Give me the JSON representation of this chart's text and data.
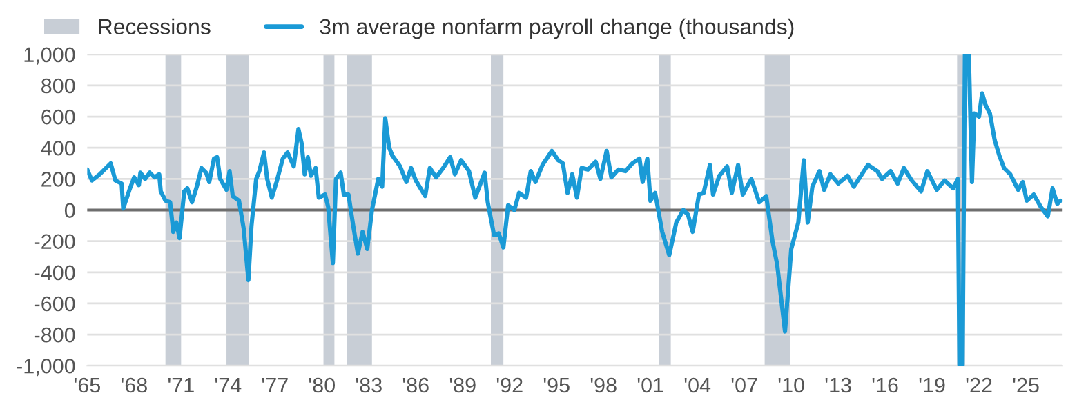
{
  "chart_data": {
    "type": "line",
    "series": [
      {
        "name": "3m average nonfarm payroll change (thousands)",
        "color": "#1a9ad6",
        "x": [
          1965.0,
          1965.3,
          1965.8,
          1966.5,
          1966.8,
          1967.2,
          1967.3,
          1967.7,
          1968.0,
          1968.3,
          1968.4,
          1968.7,
          1969.0,
          1969.3,
          1969.6,
          1969.7,
          1970.0,
          1970.3,
          1970.5,
          1970.7,
          1970.9,
          1971.2,
          1971.4,
          1971.7,
          1972.0,
          1972.3,
          1972.6,
          1972.8,
          1973.1,
          1973.3,
          1973.5,
          1973.9,
          1974.1,
          1974.3,
          1974.7,
          1975.0,
          1975.3,
          1975.5,
          1975.8,
          1976.0,
          1976.3,
          1976.5,
          1976.8,
          1977.1,
          1977.5,
          1977.8,
          1978.2,
          1978.5,
          1978.7,
          1978.9,
          1979.1,
          1979.3,
          1979.6,
          1979.8,
          1980.2,
          1980.4,
          1980.7,
          1980.9,
          1981.2,
          1981.4,
          1981.7,
          1982.0,
          1982.3,
          1982.6,
          1982.9,
          1983.2,
          1983.6,
          1983.85,
          1984.05,
          1984.3,
          1984.5,
          1985.0,
          1985.4,
          1985.7,
          1986.0,
          1986.6,
          1986.9,
          1987.3,
          1987.75,
          1988.2,
          1988.5,
          1988.9,
          1989.4,
          1989.8,
          1990.4,
          1990.6,
          1991.0,
          1991.3,
          1991.6,
          1991.9,
          1992.3,
          1992.6,
          1993.05,
          1993.35,
          1993.65,
          1994.1,
          1994.7,
          1995.1,
          1995.4,
          1995.7,
          1996.0,
          1996.3,
          1996.6,
          1997.0,
          1997.5,
          1997.8,
          1998.2,
          1998.5,
          1998.95,
          1999.4,
          1999.85,
          2000.3,
          2000.5,
          2000.8,
          2001.0,
          2001.3,
          2001.75,
          2002.2,
          2002.65,
          2003.1,
          2003.4,
          2003.7,
          2004.1,
          2004.4,
          2004.8,
          2005.0,
          2005.4,
          2005.9,
          2006.2,
          2006.6,
          2006.9,
          2007.45,
          2007.95,
          2008.4,
          2008.8,
          2009.1,
          2009.6,
          2010.0,
          2010.45,
          2010.8,
          2011.05,
          2011.35,
          2011.8,
          2012.1,
          2012.5,
          2013.0,
          2013.6,
          2014.0,
          2014.9,
          2015.5,
          2015.8,
          2016.35,
          2016.8,
          2017.2,
          2017.7,
          2018.3,
          2018.7,
          2019.3,
          2019.8,
          2020.35,
          2020.65,
          2020.75,
          2020.95,
          2021.1,
          2021.35,
          2021.55,
          2021.7,
          2022.0,
          2022.2,
          2022.4,
          2022.7,
          2023.0,
          2023.3,
          2023.6,
          2024.0,
          2024.5,
          2024.8,
          2025.05,
          2025.5,
          2025.95,
          2026.4,
          2026.7,
          2027.0,
          2027.2
        ],
        "values": [
          260,
          190,
          230,
          300,
          190,
          170,
          10,
          130,
          210,
          160,
          240,
          200,
          240,
          210,
          230,
          120,
          60,
          50,
          -140,
          -80,
          -180,
          120,
          140,
          50,
          150,
          270,
          240,
          180,
          330,
          340,
          200,
          130,
          250,
          90,
          60,
          -120,
          -450,
          -100,
          200,
          250,
          370,
          200,
          80,
          180,
          330,
          370,
          280,
          520,
          430,
          230,
          340,
          220,
          270,
          80,
          100,
          20,
          -340,
          200,
          240,
          100,
          100,
          -100,
          -280,
          -140,
          -250,
          0,
          200,
          150,
          590,
          400,
          350,
          280,
          180,
          270,
          190,
          90,
          270,
          210,
          270,
          340,
          230,
          320,
          250,
          80,
          240,
          50,
          -160,
          -150,
          -240,
          30,
          0,
          110,
          80,
          250,
          180,
          290,
          380,
          320,
          300,
          110,
          230,
          80,
          270,
          260,
          310,
          200,
          380,
          210,
          260,
          250,
          300,
          330,
          180,
          330,
          60,
          110,
          -140,
          -290,
          -80,
          0,
          -30,
          -140,
          100,
          110,
          290,
          100,
          220,
          280,
          110,
          290,
          100,
          200,
          50,
          90,
          -200,
          -350,
          -780,
          -250,
          -80,
          320,
          -80,
          150,
          250,
          130,
          230,
          170,
          220,
          150,
          290,
          250,
          200,
          250,
          170,
          270,
          190,
          120,
          250,
          130,
          190,
          140,
          200,
          -1000,
          -1000,
          1000,
          1000,
          180,
          620,
          600,
          750,
          680,
          620,
          450,
          350,
          270,
          230,
          130,
          180,
          60,
          100,
          20,
          -40,
          140,
          40,
          60
        ]
      }
    ],
    "bands": [
      {
        "axis": "x",
        "from": 1970.0,
        "to": 1971.0,
        "label": "Recessions",
        "color": "#c8ced6"
      },
      {
        "axis": "x",
        "from": 1973.9,
        "to": 1975.35,
        "color": "#c8ced6"
      },
      {
        "axis": "x",
        "from": 1980.1,
        "to": 1980.8,
        "color": "#c8ced6"
      },
      {
        "axis": "x",
        "from": 1981.6,
        "to": 1983.2,
        "color": "#c8ced6"
      },
      {
        "axis": "x",
        "from": 1990.8,
        "to": 1991.6,
        "color": "#c8ced6"
      },
      {
        "axis": "x",
        "from": 2001.55,
        "to": 2002.3,
        "color": "#c8ced6"
      },
      {
        "axis": "x",
        "from": 2008.3,
        "to": 2009.95,
        "color": "#c8ced6"
      },
      {
        "axis": "x",
        "from": 2020.6,
        "to": 2021.1,
        "color": "#c8ced6"
      }
    ],
    "ref_lines": [
      {
        "axis": "y",
        "value": 0,
        "color": "#6e6e6e"
      }
    ],
    "xlim": [
      1965,
      2027.3
    ],
    "xticks": [
      {
        "value": 1965,
        "label": "'65"
      },
      {
        "value": 1968,
        "label": "'68"
      },
      {
        "value": 1971,
        "label": "'71"
      },
      {
        "value": 1974,
        "label": "'74"
      },
      {
        "value": 1977,
        "label": "'77"
      },
      {
        "value": 1980,
        "label": "'80"
      },
      {
        "value": 1983,
        "label": "'83"
      },
      {
        "value": 1986,
        "label": "'86"
      },
      {
        "value": 1989,
        "label": "'89"
      },
      {
        "value": 1992,
        "label": "'92"
      },
      {
        "value": 1995,
        "label": "'95"
      },
      {
        "value": 1998,
        "label": "'98"
      },
      {
        "value": 2001,
        "label": "'01"
      },
      {
        "value": 2004,
        "label": "'04"
      },
      {
        "value": 2007,
        "label": "'07"
      },
      {
        "value": 2010,
        "label": "'10"
      },
      {
        "value": 2013,
        "label": "'13"
      },
      {
        "value": 2016,
        "label": "'16"
      },
      {
        "value": 2019,
        "label": "'19"
      },
      {
        "value": 2022,
        "label": "'22"
      },
      {
        "value": 2025,
        "label": "'25"
      }
    ],
    "ylim": [
      -1000,
      1000
    ],
    "yticks": [
      {
        "value": 1000,
        "label": "1,000"
      },
      800,
      600,
      400,
      200,
      0,
      -200,
      -400,
      -600,
      -800,
      {
        "value": -1000,
        "label": "-1,000"
      }
    ],
    "grid": "y",
    "legend": "top left",
    "marker": "none",
    "line_style": "solid"
  }
}
